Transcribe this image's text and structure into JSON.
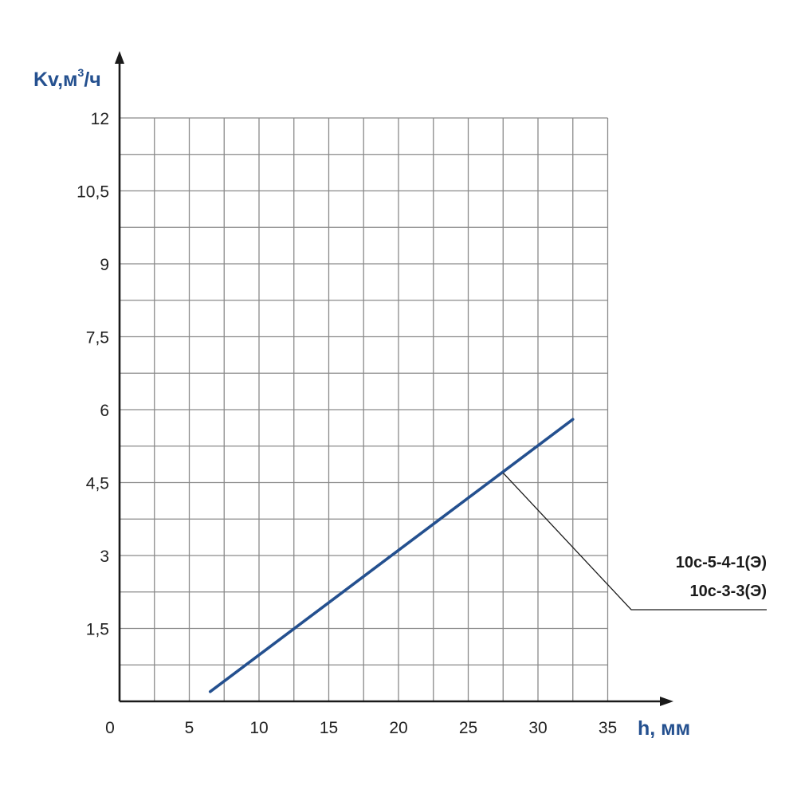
{
  "chart_data": {
    "type": "line",
    "xlabel": "h, мм",
    "ylabel_main": "Kv,м",
    "ylabel_sup": "3",
    "ylabel_tail": "/ч",
    "xlim": [
      0,
      35
    ],
    "ylim": [
      0,
      12
    ],
    "x_ticks": [
      "0",
      "5",
      "10",
      "15",
      "20",
      "25",
      "30",
      "35"
    ],
    "y_ticks": [
      "1,5",
      "3",
      "4,5",
      "6",
      "7,5",
      "9",
      "10,5",
      "12"
    ],
    "grid": true,
    "series": [
      {
        "name_lines": [
          "10с-5-4-1(Э)",
          "10с-3-3(Э)"
        ],
        "color": "#24508f",
        "x": [
          6.5,
          32.5
        ],
        "y": [
          0.2,
          5.8
        ]
      }
    ],
    "callout_point": {
      "x": 27.5,
      "y": 4.7
    }
  }
}
